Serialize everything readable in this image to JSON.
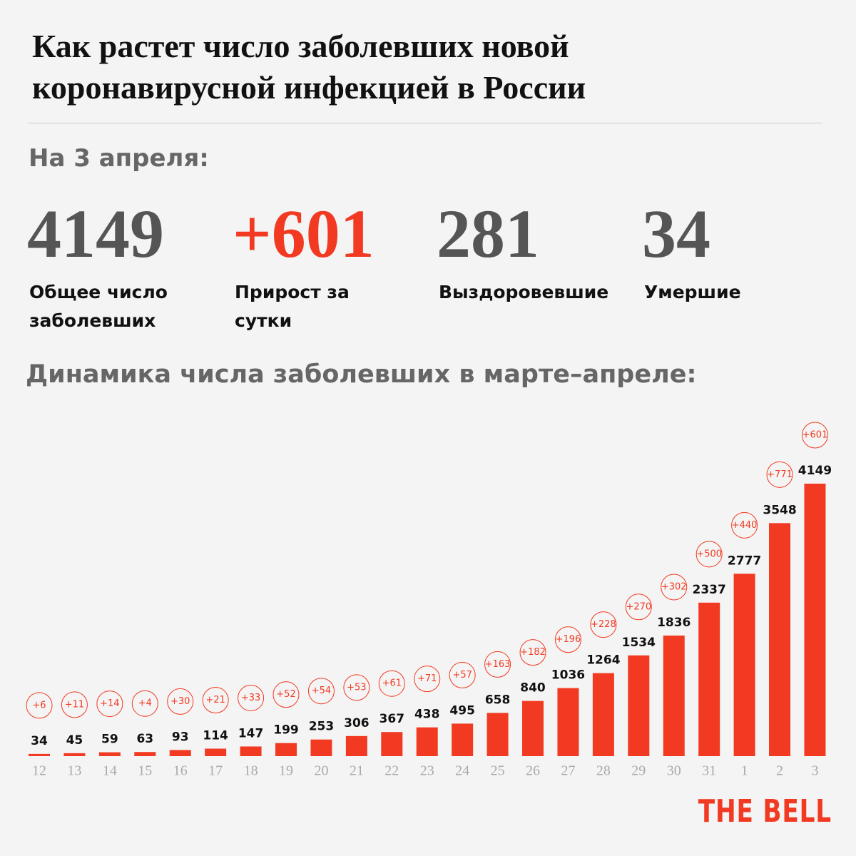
{
  "header": {
    "title_lines": [
      "Как растет число заболевших новой",
      "коронавирусной инфекцией в России"
    ],
    "date_label": "На 3 апреля:",
    "stats": [
      {
        "value": "4149",
        "caption": "Общее число заболевших"
      },
      {
        "value": "+601",
        "caption": "Прирост за сутки"
      },
      {
        "value": "281",
        "caption": "Выздоровевшие"
      },
      {
        "value": "34",
        "caption": "Умершие"
      }
    ],
    "chart_heading": "Динамика числа заболевших в марте–апреле:"
  },
  "chart_data": {
    "type": "bar",
    "categories": [
      "12",
      "13",
      "14",
      "15",
      "16",
      "17",
      "18",
      "19",
      "20",
      "21",
      "22",
      "23",
      "24",
      "25",
      "26",
      "27",
      "28",
      "29",
      "30",
      "31",
      "1",
      "2",
      "3"
    ],
    "values": [
      34,
      45,
      59,
      63,
      93,
      114,
      147,
      199,
      253,
      306,
      367,
      438,
      495,
      658,
      840,
      1036,
      1264,
      1534,
      1836,
      2337,
      2777,
      3548,
      4149
    ],
    "color": "#f23a22",
    "increments": {
      "values": [
        6,
        11,
        14,
        4,
        30,
        21,
        33,
        52,
        54,
        53,
        61,
        71,
        57,
        163,
        182,
        196,
        228,
        270,
        302,
        500,
        440,
        771,
        601
      ],
      "value_labels": [
        "+6",
        "+11",
        "+14",
        "+4",
        "+30",
        "+21",
        "+33",
        "+52",
        "+54",
        "+53",
        "+61",
        "+71",
        "+57",
        "+163",
        "+182",
        "+196",
        "+228",
        "+270",
        "+302",
        "+500",
        "+440",
        "+771",
        "+601"
      ]
    }
  },
  "logo": "THE BELL"
}
